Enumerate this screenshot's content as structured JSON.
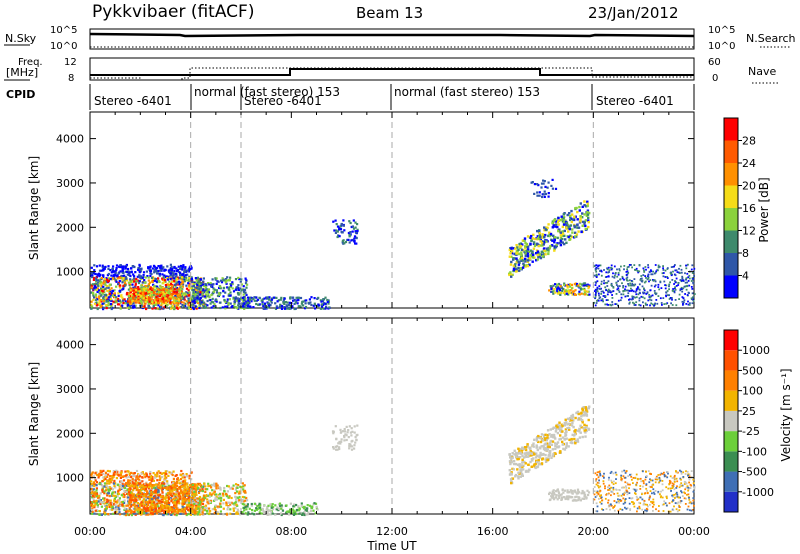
{
  "header": {
    "station": "Pykkvibaer (fitACF)",
    "beam": "Beam 13",
    "date": "23/Jan/2012"
  },
  "small_panels": {
    "nsky_label": "N.Sky",
    "nsky_ticks": [
      "10^5",
      "10^0"
    ],
    "nsearch_label": "N.Search",
    "nsearch_ticks": [
      "10^5",
      "10^0"
    ],
    "freq_label_1": "Freq.",
    "freq_label_2": "[MHz]",
    "freq_ticks": [
      "12",
      "8"
    ],
    "nave_label": "Nave",
    "nave_ticks": [
      "60",
      "0"
    ],
    "cpid_label": "CPID"
  },
  "cpid_segments": [
    {
      "label": "Stereo -6401",
      "start_h": 0.0,
      "end_h": 4.0
    },
    {
      "label": "normal (fast stereo) 153",
      "start_h": 4.0,
      "end_h": 6.0
    },
    {
      "label": "Stereo -6401",
      "start_h": 6.0,
      "end_h": 12.0
    },
    {
      "label": "normal (fast stereo) 153",
      "start_h": 12.0,
      "end_h": 20.0
    },
    {
      "label": "Stereo -6401",
      "start_h": 20.0,
      "end_h": 24.0
    }
  ],
  "chart_data": [
    {
      "type": "heatmap",
      "quantity": "power",
      "xlabel": "Time UT",
      "ylabel": "Slant Range [km]",
      "x_range_h": [
        0,
        24
      ],
      "ylim": [
        180,
        4600
      ],
      "y_ticks": [
        "1000",
        "2000",
        "3000",
        "4000"
      ],
      "colorbar_label": "Power [dB]",
      "colorbar_ticks": [
        "4",
        "8",
        "12",
        "16",
        "20",
        "24",
        "28"
      ],
      "colorbar_colors": [
        "#0000ff",
        "#2f57a8",
        "#3e8a6c",
        "#8bd23c",
        "#f5dc18",
        "#ff9000",
        "#ff5a00",
        "#ff0000"
      ]
    },
    {
      "type": "heatmap",
      "quantity": "velocity",
      "xlabel": "Time UT",
      "ylabel": "Slant Range [km]",
      "x_range_h": [
        0,
        24
      ],
      "ylim": [
        180,
        4600
      ],
      "y_ticks": [
        "1000",
        "2000",
        "3000",
        "4000"
      ],
      "colorbar_label": "Velocity [m s⁻¹]",
      "colorbar_ticks": [
        "1000",
        "500",
        "100",
        "25",
        "-25",
        "-100",
        "-500",
        "-1000"
      ],
      "colorbar_colors": [
        "#2230c8",
        "#3f6fb5",
        "#3b8e52",
        "#6ccf3a",
        "#c8c8c0",
        "#f2b400",
        "#ff8000",
        "#ff5000",
        "#ff0000"
      ]
    }
  ],
  "x_ticks": [
    "00:00",
    "04:00",
    "08:00",
    "12:00",
    "16:00",
    "20:00",
    "00:00"
  ],
  "xlabel": "Time UT"
}
